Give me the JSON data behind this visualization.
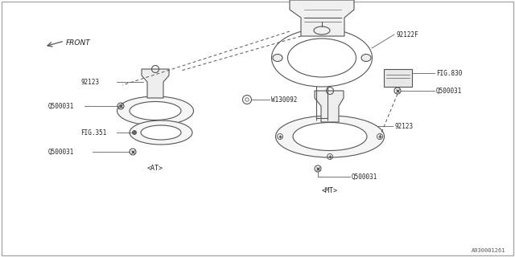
{
  "bg_color": "#ffffff",
  "line_color": "#555555",
  "diagram_id": "A930001261",
  "labels": {
    "front": "FRONT",
    "w130092": "W130092",
    "92122f": "92122F",
    "fig830": "FIG.830",
    "q500031_1": "Q500031",
    "q500031_2": "Q500031",
    "q500031_3": "Q500031",
    "q500031_4": "Q500031",
    "92123_1": "92123",
    "92123_2": "92123",
    "fig351": "FIG.351",
    "at_label": "<AT>",
    "mt_label": "<MT>"
  }
}
